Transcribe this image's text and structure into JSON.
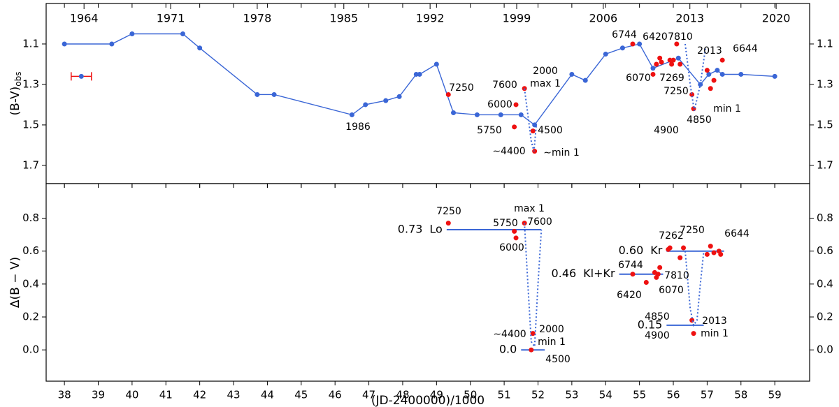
{
  "chart_data": [
    {
      "type": "scatter",
      "y_label": "(B-V)",
      "y_label_sub": "obs",
      "xlim": [
        37.46,
        60.03
      ],
      "ylim": [
        0.9,
        1.79
      ],
      "y_inverted": true,
      "yticks": [
        1.1,
        1.3,
        1.5,
        1.7
      ],
      "xticks": [
        38,
        39,
        40,
        41,
        42,
        43,
        44,
        45,
        46,
        47,
        48,
        49,
        50,
        51,
        52,
        53,
        54,
        55,
        56,
        57,
        58,
        59
      ],
      "x2ticks": [
        {
          "value": 38.58,
          "label": "1964"
        },
        {
          "value": 41.14,
          "label": "1971"
        },
        {
          "value": 43.7,
          "label": "1978"
        },
        {
          "value": 46.26,
          "label": "1985"
        },
        {
          "value": 48.81,
          "label": "1992"
        },
        {
          "value": 51.37,
          "label": "1999"
        },
        {
          "value": 53.93,
          "label": "2006"
        },
        {
          "value": 56.49,
          "label": "2013"
        },
        {
          "value": 59.04,
          "label": "2020"
        }
      ],
      "series": [
        {
          "kind": "line",
          "color": "#3a66d6",
          "x": [
            38.0,
            39.4,
            40.0,
            41.5,
            42.0,
            43.7,
            44.2,
            46.5,
            46.9,
            47.5,
            47.9,
            48.4,
            48.5,
            49.0,
            49.5,
            50.2,
            50.9,
            51.5,
            51.9,
            53.0,
            53.4,
            54.0,
            54.5,
            55.0,
            55.4,
            56.15,
            56.8,
            57.05,
            57.3,
            57.45,
            58.0,
            59.0
          ],
          "values": [
            1.1,
            1.1,
            1.05,
            1.05,
            1.12,
            1.35,
            1.35,
            1.45,
            1.4,
            1.38,
            1.36,
            1.25,
            1.25,
            1.2,
            1.44,
            1.45,
            1.45,
            1.45,
            1.5,
            1.25,
            1.28,
            1.15,
            1.12,
            1.1,
            1.22,
            1.17,
            1.3,
            1.25,
            1.23,
            1.25,
            1.25,
            1.26
          ]
        },
        {
          "kind": "points",
          "color": "#ee1111",
          "x": [
            49.35,
            51.3,
            51.35,
            51.6,
            51.85,
            51.9,
            54.8,
            55.4,
            55.5,
            55.6,
            55.65,
            55.9,
            55.95,
            56.0,
            56.1,
            56.2,
            56.55,
            56.6,
            57.0,
            57.1,
            57.2,
            57.45
          ],
          "values": [
            1.35,
            1.51,
            1.4,
            1.32,
            1.53,
            1.63,
            1.1,
            1.25,
            1.2,
            1.17,
            1.19,
            1.18,
            1.2,
            1.18,
            1.1,
            1.2,
            1.35,
            1.42,
            1.23,
            1.32,
            1.28,
            1.18
          ]
        },
        {
          "kind": "errorbar",
          "color": "#ee1111",
          "x": [
            38.5
          ],
          "values": [
            1.26
          ],
          "xerr": [
            0.3
          ]
        },
        {
          "kind": "dotted",
          "color": "#3a66d6",
          "x": [
            51.6,
            51.7,
            51.8,
            51.88,
            51.95
          ],
          "values": [
            1.32,
            1.45,
            1.58,
            1.63,
            1.5
          ]
        },
        {
          "kind": "dotted",
          "color": "#3a66d6",
          "x": [
            56.35,
            56.5,
            56.62,
            56.8,
            56.95
          ],
          "values": [
            1.1,
            1.3,
            1.43,
            1.3,
            1.12
          ]
        }
      ],
      "annotations": [
        {
          "text": "7250",
          "color": "#118811"
        },
        {
          "text": "1986",
          "color": "#ee1111"
        },
        {
          "text": "2000",
          "color": "#ee1111"
        },
        {
          "text": "max 1",
          "color": "#ee1111"
        },
        {
          "text": "7600",
          "color": "#118811"
        },
        {
          "text": "6000",
          "color": "#118811"
        },
        {
          "text": "5750",
          "color": "#118811"
        },
        {
          "text": "4500",
          "color": "#118811"
        },
        {
          "text": "∼4400",
          "color": "#118811"
        },
        {
          "text": "∼min 1",
          "color": "#ee1111"
        },
        {
          "text": "6744",
          "color": "#118811"
        },
        {
          "text": "6420",
          "color": "#118811"
        },
        {
          "text": "7810",
          "color": "#118811"
        },
        {
          "text": "2013",
          "color": "#ee1111"
        },
        {
          "text": "6644",
          "color": "#118811"
        },
        {
          "text": "6070",
          "color": "#118811"
        },
        {
          "text": "7269",
          "color": "#118811"
        },
        {
          "text": "7250",
          "color": "#118811"
        },
        {
          "text": "4900",
          "color": "#118811"
        },
        {
          "text": "min 1",
          "color": "#ee1111"
        },
        {
          "text": "4850",
          "color": "#118811"
        }
      ]
    },
    {
      "type": "scatter",
      "y_label": "Δ(B − V)",
      "x_label": "(JD-2400000)/1000",
      "xlim": [
        37.46,
        60.03
      ],
      "ylim": [
        -0.19,
        1.01
      ],
      "yticks": [
        0.0,
        0.2,
        0.4,
        0.6,
        0.8
      ],
      "ytick_labels": [
        "0.0",
        "0.2",
        "0.4",
        "0.6",
        "0.8"
      ],
      "xticks": [
        38,
        39,
        40,
        41,
        42,
        43,
        44,
        45,
        46,
        47,
        48,
        49,
        50,
        51,
        52,
        53,
        54,
        55,
        56,
        57,
        58,
        59
      ],
      "series": [
        {
          "kind": "levels",
          "color": "#3a66d6",
          "values": [
            0.73,
            0.0,
            0.6,
            0.46,
            0.15
          ],
          "value_labels": [
            "0.73",
            "0.0",
            "0.60",
            "0.46",
            "0.15"
          ],
          "x_start": [
            49.3,
            51.5,
            55.8,
            54.4,
            55.8
          ],
          "x_end": [
            52.1,
            52.2,
            57.5,
            55.7,
            56.9
          ],
          "names": [
            "Lo",
            null,
            "Kr",
            "Kl+Kr",
            null
          ],
          "name_color": "#ee1111"
        },
        {
          "kind": "points",
          "color": "#ee1111",
          "x": [
            49.35,
            51.3,
            51.35,
            51.6,
            51.8,
            51.85,
            54.8,
            55.2,
            55.45,
            55.5,
            55.55,
            55.6,
            55.85,
            55.9,
            56.2,
            56.3,
            56.55,
            56.6,
            57.0,
            57.1,
            57.2,
            57.35,
            57.4
          ],
          "values": [
            0.77,
            0.72,
            0.68,
            0.77,
            0.0,
            0.1,
            0.46,
            0.41,
            0.47,
            0.44,
            0.46,
            0.5,
            0.61,
            0.62,
            0.56,
            0.62,
            0.18,
            0.1,
            0.58,
            0.63,
            0.59,
            0.6,
            0.58
          ]
        },
        {
          "kind": "dotted",
          "color": "#3a66d6",
          "x": [
            51.6,
            51.7,
            51.8,
            51.9,
            52.0,
            52.1
          ],
          "values": [
            0.77,
            0.4,
            0.05,
            0.02,
            0.4,
            0.73
          ]
        },
        {
          "kind": "dotted",
          "color": "#3a66d6",
          "x": [
            56.35,
            56.5,
            56.6,
            56.7,
            56.8,
            56.9
          ],
          "values": [
            0.6,
            0.25,
            0.15,
            0.18,
            0.4,
            0.6
          ]
        }
      ],
      "annotations": [
        {
          "text": "7250",
          "color": "#118811"
        },
        {
          "text": "max 1",
          "color": "#ee1111"
        },
        {
          "text": "7600",
          "color": "#118811"
        },
        {
          "text": "5750",
          "color": "#118811"
        },
        {
          "text": "6000",
          "color": "#118811"
        },
        {
          "text": "∼4400",
          "color": "#118811"
        },
        {
          "text": "2000",
          "color": "#ee1111"
        },
        {
          "text": "min 1",
          "color": "#ee1111"
        },
        {
          "text": "4500",
          "color": "#118811"
        },
        {
          "text": "7262",
          "color": "#118811"
        },
        {
          "text": "7250",
          "color": "#118811"
        },
        {
          "text": "6644",
          "color": "#118811"
        },
        {
          "text": "6744",
          "color": "#118811"
        },
        {
          "text": "7810",
          "color": "#118811"
        },
        {
          "text": "6420",
          "color": "#118811"
        },
        {
          "text": "6070",
          "color": "#118811"
        },
        {
          "text": "4850",
          "color": "#118811"
        },
        {
          "text": "2013",
          "color": "#ee1111"
        },
        {
          "text": "min 1",
          "color": "#ee1111"
        },
        {
          "text": "4900",
          "color": "#118811"
        }
      ]
    }
  ]
}
